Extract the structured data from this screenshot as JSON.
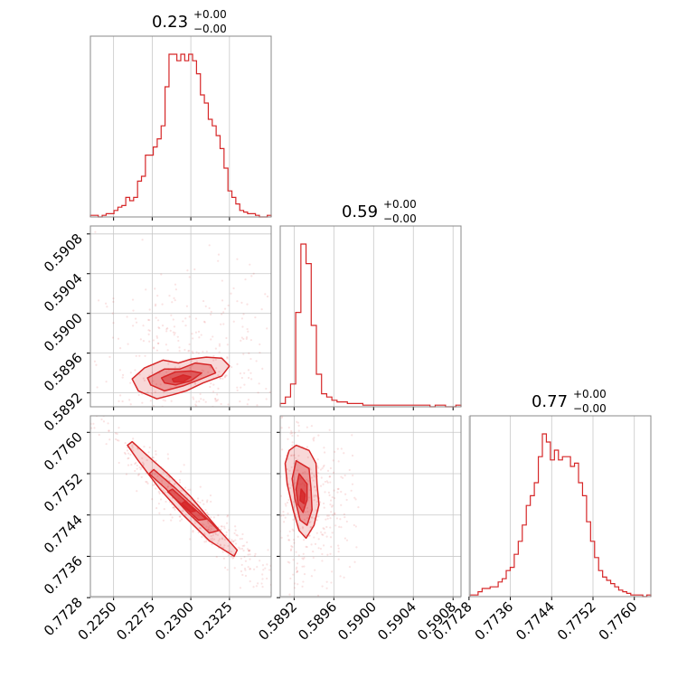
{
  "colors": {
    "accent": "#d62728",
    "grid": "#c8c8c8",
    "frame": "#888888"
  },
  "chart_data": {
    "type": "corner",
    "parameters": [
      {
        "title": {
          "value": "0.23",
          "sup": "+0.00",
          "sub": "−0.00"
        },
        "range": [
          0.2235,
          0.2352
        ],
        "ticks": [
          "0.2250",
          "0.2275",
          "0.2300",
          "0.2325"
        ]
      },
      {
        "title": {
          "value": "0.59",
          "sup": "+0.00",
          "sub": "−0.00"
        },
        "range": [
          0.58906,
          0.59088
        ],
        "ticks": [
          "0.5892",
          "0.5896",
          "0.5900",
          "0.5904",
          "0.5908"
        ]
      },
      {
        "title": {
          "value": "0.77",
          "sup": "+0.00",
          "sub": "−0.00"
        },
        "range": [
          0.77282,
          0.77632
        ],
        "ticks": [
          "0.7728",
          "0.7736",
          "0.7744",
          "0.7752",
          "0.7760"
        ]
      }
    ],
    "histograms": [
      [
        1,
        1,
        0,
        1,
        2,
        2,
        4,
        6,
        7,
        12,
        10,
        12,
        22,
        25,
        38,
        38,
        43,
        48,
        56,
        80,
        100,
        100,
        96,
        100,
        96,
        100,
        96,
        88,
        75,
        70,
        60,
        56,
        50,
        42,
        30,
        16,
        12,
        8,
        4,
        3,
        2,
        2,
        1,
        0,
        0,
        1
      ],
      [
        2,
        6,
        14,
        58,
        100,
        88,
        50,
        20,
        8,
        6,
        4,
        3,
        3,
        2,
        2,
        2,
        1,
        1,
        1,
        1,
        1,
        1,
        1,
        1,
        1,
        1,
        1,
        1,
        1,
        0,
        1,
        1,
        0,
        0,
        1
      ],
      [
        1,
        1,
        3,
        5,
        5,
        6,
        6,
        9,
        11,
        16,
        18,
        26,
        34,
        44,
        56,
        62,
        70,
        86,
        100,
        95,
        84,
        90,
        84,
        86,
        86,
        80,
        82,
        70,
        62,
        46,
        34,
        24,
        16,
        12,
        10,
        8,
        6,
        4,
        3,
        2,
        1,
        1,
        1,
        0,
        1
      ]
    ],
    "contours": [
      {
        "pair": [
          0,
          1
        ],
        "levels": [
          [
            [
              0.2262,
              0.58934
            ],
            [
              0.227,
              0.58945
            ],
            [
              0.2282,
              0.58953
            ],
            [
              0.2292,
              0.5895
            ],
            [
              0.23,
              0.58954
            ],
            [
              0.231,
              0.58956
            ],
            [
              0.232,
              0.58955
            ],
            [
              0.2325,
              0.58947
            ],
            [
              0.232,
              0.58937
            ],
            [
              0.2308,
              0.5893
            ],
            [
              0.2297,
              0.58922
            ],
            [
              0.2288,
              0.58918
            ],
            [
              0.2278,
              0.58914
            ],
            [
              0.2266,
              0.58922
            ]
          ],
          [
            [
              0.2272,
              0.58935
            ],
            [
              0.2283,
              0.58944
            ],
            [
              0.2293,
              0.58944
            ],
            [
              0.2303,
              0.5895
            ],
            [
              0.2313,
              0.58948
            ],
            [
              0.2316,
              0.5894
            ],
            [
              0.2305,
              0.58933
            ],
            [
              0.2295,
              0.58927
            ],
            [
              0.2283,
              0.58922
            ],
            [
              0.2274,
              0.58928
            ]
          ],
          [
            [
              0.2281,
              0.58935
            ],
            [
              0.229,
              0.58941
            ],
            [
              0.23,
              0.58942
            ],
            [
              0.2307,
              0.5894
            ],
            [
              0.23,
              0.58932
            ],
            [
              0.229,
              0.58928
            ],
            [
              0.2283,
              0.5893
            ]
          ],
          [
            [
              0.2288,
              0.58934
            ],
            [
              0.2295,
              0.58938
            ],
            [
              0.23,
              0.58936
            ],
            [
              0.2295,
              0.58931
            ],
            [
              0.2289,
              0.58931
            ]
          ]
        ],
        "scatter": {
          "center": [
            0.2297,
            0.58945
          ],
          "spread": [
            0.0033,
            0.00055
          ],
          "rho": 0.2,
          "n": 420,
          "seed": 11
        }
      },
      {
        "pair": [
          0,
          2
        ],
        "levels": [
          [
            [
              0.2262,
              0.77582
            ],
            [
              0.227,
              0.7756
            ],
            [
              0.2285,
              0.7752
            ],
            [
              0.23,
              0.77475
            ],
            [
              0.2318,
              0.77412
            ],
            [
              0.233,
              0.77372
            ],
            [
              0.2328,
              0.7736
            ],
            [
              0.2312,
              0.7739
            ],
            [
              0.2295,
              0.7744
            ],
            [
              0.228,
              0.7749
            ],
            [
              0.2266,
              0.77545
            ],
            [
              0.2259,
              0.77575
            ]
          ],
          [
            [
              0.2276,
              0.77528
            ],
            [
              0.229,
              0.77492
            ],
            [
              0.2305,
              0.7745
            ],
            [
              0.2318,
              0.7741
            ],
            [
              0.2312,
              0.77405
            ],
            [
              0.2298,
              0.77445
            ],
            [
              0.2284,
              0.7749
            ],
            [
              0.2273,
              0.7752
            ]
          ],
          [
            [
              0.2288,
              0.7749
            ],
            [
              0.23,
              0.77458
            ],
            [
              0.231,
              0.77432
            ],
            [
              0.2305,
              0.7743
            ],
            [
              0.2293,
              0.77463
            ],
            [
              0.2285,
              0.77485
            ]
          ],
          [
            [
              0.2296,
              0.77466
            ],
            [
              0.2303,
              0.77448
            ],
            [
              0.23,
              0.77446
            ],
            [
              0.2294,
              0.77462
            ]
          ]
        ],
        "scatter": {
          "center": [
            0.2297,
            0.7746
          ],
          "spread": [
            0.003,
            0.00085
          ],
          "rho": -0.96,
          "n": 420,
          "seed": 23
        }
      },
      {
        "pair": [
          1,
          2
        ],
        "levels": [
          [
            [
              0.58922,
              0.77575
            ],
            [
              0.58935,
              0.77565
            ],
            [
              0.58942,
              0.7754
            ],
            [
              0.58943,
              0.775
            ],
            [
              0.58945,
              0.7746
            ],
            [
              0.5894,
              0.7742
            ],
            [
              0.58932,
              0.77395
            ],
            [
              0.58925,
              0.7741
            ],
            [
              0.58919,
              0.7745
            ],
            [
              0.58913,
              0.775
            ],
            [
              0.58911,
              0.7754
            ],
            [
              0.58915,
              0.77565
            ]
          ],
          [
            [
              0.58922,
              0.77545
            ],
            [
              0.58935,
              0.7753
            ],
            [
              0.58937,
              0.7749
            ],
            [
              0.58938,
              0.7745
            ],
            [
              0.58933,
              0.7742
            ],
            [
              0.58926,
              0.7743
            ],
            [
              0.58921,
              0.7747
            ],
            [
              0.58918,
              0.7751
            ]
          ],
          [
            [
              0.58925,
              0.7752
            ],
            [
              0.58933,
              0.775
            ],
            [
              0.58933,
              0.7747
            ],
            [
              0.58929,
              0.77445
            ],
            [
              0.58924,
              0.7746
            ],
            [
              0.58922,
              0.7749
            ]
          ],
          [
            [
              0.58927,
              0.7749
            ],
            [
              0.58931,
              0.7748
            ],
            [
              0.5893,
              0.77462
            ],
            [
              0.58926,
              0.77468
            ]
          ]
        ],
        "scatter": {
          "center": [
            0.58932,
            0.7747
          ],
          "spread": [
            0.00022,
            0.0008
          ],
          "rho": -0.1,
          "n": 380,
          "seed": 37
        }
      }
    ]
  }
}
